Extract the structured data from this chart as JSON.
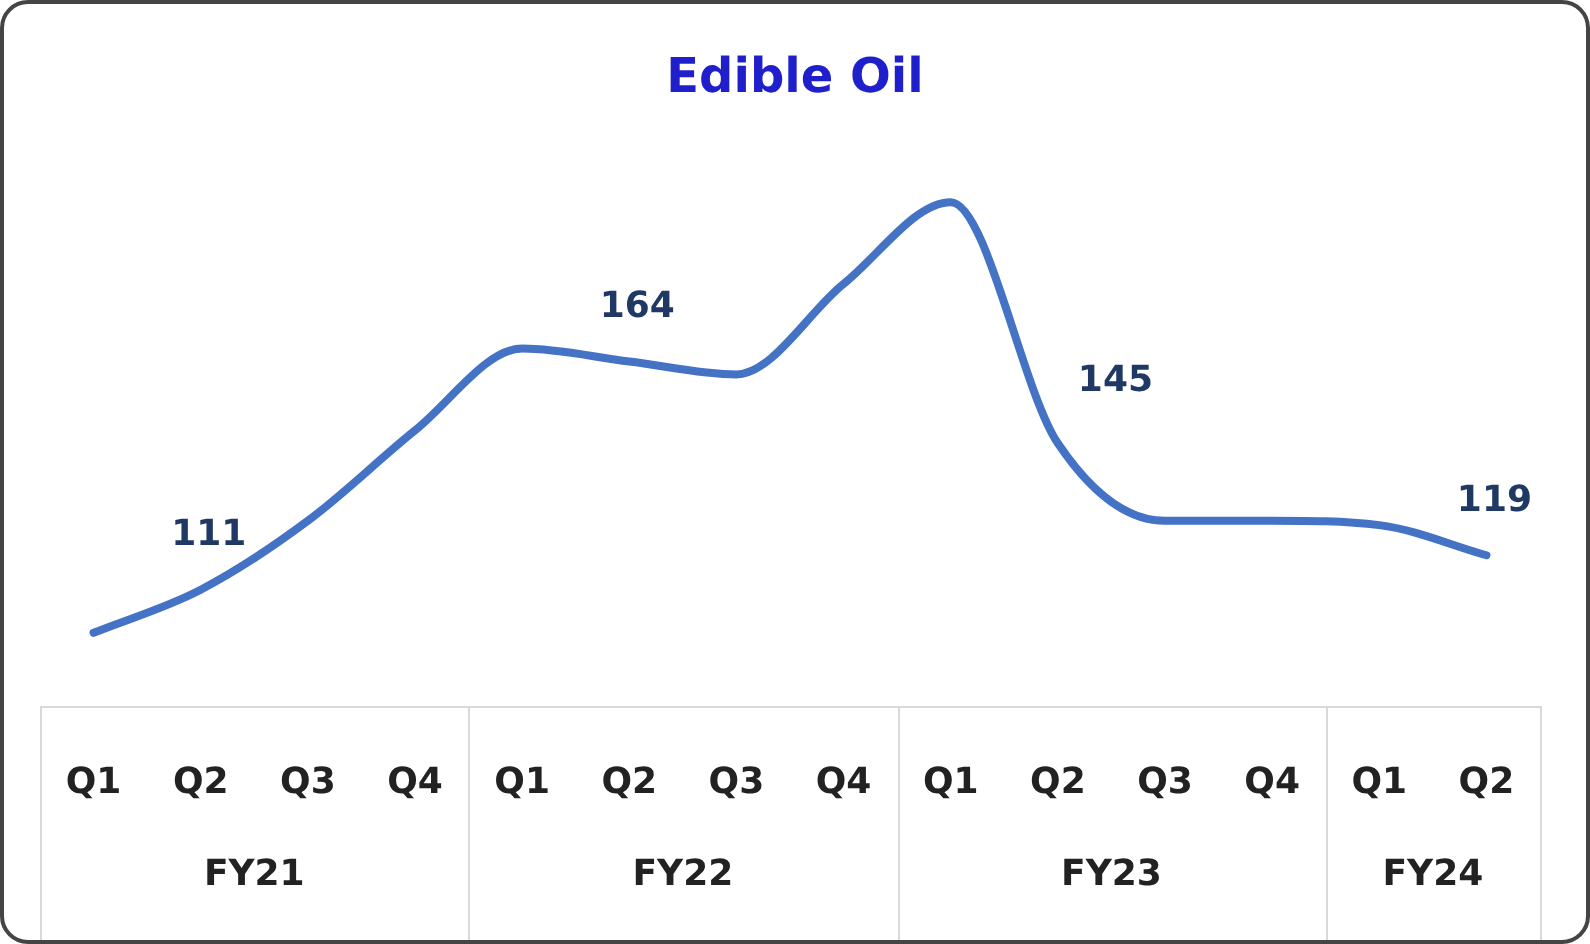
{
  "chart_data": {
    "type": "line",
    "title": "Edible Oil",
    "categories": [
      "Q1",
      "Q2",
      "Q3",
      "Q4",
      "Q1",
      "Q2",
      "Q3",
      "Q4",
      "Q1",
      "Q2",
      "Q3",
      "Q4",
      "Q1",
      "Q2"
    ],
    "series": [
      {
        "color": "#4472c4",
        "values": [
          101,
          111,
          127,
          148,
          167,
          164,
          161,
          182,
          201,
          145,
          127,
          127,
          126,
          119
        ],
        "value_labels": [
          null,
          "111",
          null,
          null,
          null,
          "164",
          null,
          null,
          null,
          "145",
          null,
          null,
          null,
          "119"
        ]
      }
    ],
    "annotations": [
      "FY21",
      "FY22",
      "FY23",
      "FY24"
    ],
    "grid": false,
    "legend": false,
    "marker": "none",
    "line_style": "solid"
  }
}
